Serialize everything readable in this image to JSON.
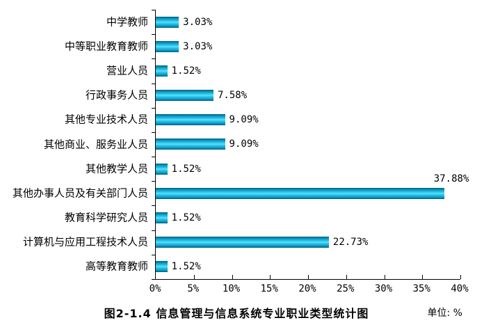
{
  "chart_data": {
    "type": "bar",
    "orientation": "horizontal",
    "title": "图2-1.4 信息管理与信息系统专业职业类型统计图",
    "unit_label": "单位: %",
    "categories": [
      "中学教师",
      "中等职业教育教师",
      "营业人员",
      "行政事务人员",
      "其他专业技术人员",
      "其他商业、服务业人员",
      "其他教学人员",
      "其他办事人员及有关部门人员",
      "教育科学研究人员",
      "计算机与应用工程技术人员",
      "高等教育教师"
    ],
    "values": [
      3.03,
      3.03,
      1.52,
      7.58,
      9.09,
      9.09,
      1.52,
      37.88,
      1.52,
      22.73,
      1.52
    ],
    "value_labels": [
      "3.03%",
      "3.03%",
      "1.52%",
      "7.58%",
      "9.09%",
      "9.09%",
      "1.52%",
      "37.88%",
      "1.52%",
      "22.73%",
      "1.52%"
    ],
    "value_label_positions": [
      "side",
      "side",
      "side",
      "side",
      "side",
      "side",
      "side",
      "above",
      "side",
      "side",
      "side"
    ],
    "xlim": [
      0,
      40
    ],
    "x_tick_step": 5,
    "x_tick_labels": [
      "0%",
      "5%",
      "10%",
      "15%",
      "20%",
      "25%",
      "30%",
      "35%",
      "40%"
    ],
    "grid": "off",
    "legend": "none",
    "colors": {
      "bar_edge": "#00607d",
      "bar_mid": "#0f9cc6",
      "bar_light": "#35cdf0",
      "bar_highlight": "#63e3ff",
      "axis": "#000000",
      "background": "#ffffff",
      "text": "#000000"
    }
  }
}
